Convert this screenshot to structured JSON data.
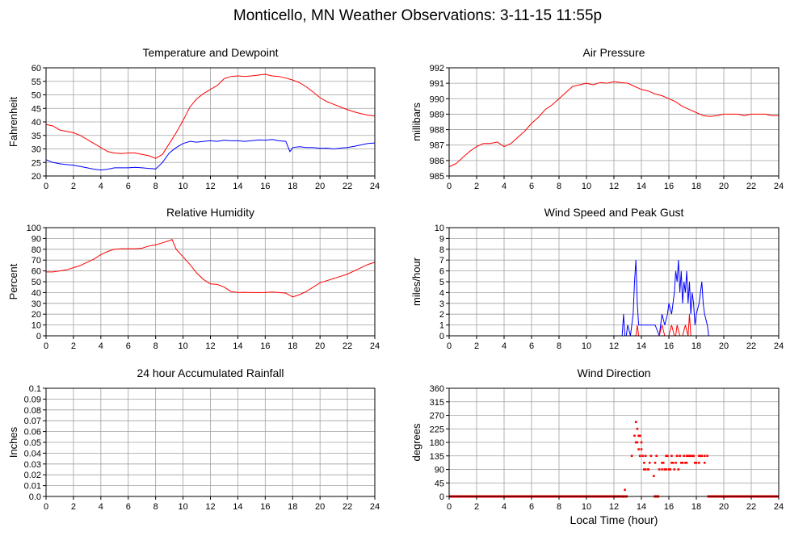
{
  "page": {
    "title": "Monticello, MN Weather Observations: 3-11-15 11:55p",
    "xlabel": "Local Time (hour)"
  },
  "colors": {
    "red": "#ff0000",
    "blue": "#0000ff",
    "grid": "#a0a0a0"
  },
  "chart_data": [
    {
      "id": "temp",
      "type": "line",
      "title": "Temperature and Dewpoint",
      "ylabel": "Fahrenheit",
      "xlim": [
        0,
        24
      ],
      "ylim": [
        20,
        60
      ],
      "xticks": [
        0,
        2,
        4,
        6,
        8,
        10,
        12,
        14,
        16,
        18,
        20,
        22,
        24
      ],
      "yticks": [
        20,
        25,
        30,
        35,
        40,
        45,
        50,
        55,
        60
      ],
      "grid": true,
      "series": [
        {
          "color": "#ff0000",
          "x": [
            0,
            0.5,
            1,
            1.5,
            2,
            2.5,
            3,
            3.5,
            4,
            4.5,
            5,
            5.5,
            6,
            6.5,
            7,
            7.5,
            8,
            8.5,
            9,
            9.5,
            10,
            10.5,
            11,
            11.5,
            12,
            12.5,
            13,
            13.5,
            14,
            14.5,
            15,
            15.5,
            16,
            16.5,
            17,
            17.5,
            18,
            18.5,
            19,
            19.5,
            20,
            20.5,
            21,
            21.5,
            22,
            22.5,
            23,
            23.5,
            24
          ],
          "y": [
            39,
            38.5,
            37,
            36.5,
            36,
            35,
            33.5,
            32,
            30.5,
            29,
            28.5,
            28.3,
            28.5,
            28.5,
            28,
            27.5,
            26.5,
            28,
            32,
            36,
            40.5,
            45.5,
            48.5,
            50.5,
            52,
            53.5,
            56,
            56.8,
            57,
            56.8,
            57,
            57.3,
            57.6,
            57,
            56.8,
            56.2,
            55.5,
            54.5,
            53,
            51,
            49,
            47.5,
            46.5,
            45.5,
            44.5,
            43.7,
            43,
            42.5,
            42.2
          ]
        },
        {
          "color": "#0000ff",
          "x": [
            0,
            0.5,
            1,
            1.5,
            2,
            2.5,
            3,
            3.5,
            4,
            4.5,
            5,
            5.5,
            6,
            6.5,
            7,
            7.5,
            8,
            8.5,
            9,
            9.5,
            10,
            10.5,
            11,
            11.5,
            12,
            12.5,
            13,
            13.5,
            14,
            14.5,
            15,
            15.5,
            16,
            16.5,
            17,
            17.5,
            17.8,
            18,
            18.5,
            19,
            19.5,
            20,
            20.5,
            21,
            21.5,
            22,
            22.5,
            23,
            23.5,
            24
          ],
          "y": [
            26,
            25,
            24.5,
            24.2,
            24,
            23.5,
            23,
            22.5,
            22.2,
            22.5,
            23,
            23,
            23,
            23.2,
            23,
            22.8,
            22.6,
            25,
            28.5,
            30.5,
            32,
            32.8,
            32.5,
            32.8,
            33,
            32.8,
            33.2,
            33,
            33,
            32.8,
            33,
            33.3,
            33.2,
            33.5,
            33,
            32.8,
            29,
            30.5,
            30.8,
            30.5,
            30.5,
            30.2,
            30.3,
            30,
            30.3,
            30.5,
            31,
            31.5,
            32,
            32.2
          ]
        }
      ]
    },
    {
      "id": "pressure",
      "type": "line",
      "title": "Air Pressure",
      "ylabel": "millibars",
      "xlim": [
        0,
        24
      ],
      "ylim": [
        985,
        992
      ],
      "xticks": [
        0,
        2,
        4,
        6,
        8,
        10,
        12,
        14,
        16,
        18,
        20,
        22,
        24
      ],
      "yticks": [
        985,
        986,
        987,
        988,
        989,
        990,
        991,
        992
      ],
      "grid": true,
      "series": [
        {
          "color": "#ff0000",
          "x": [
            0,
            0.5,
            1,
            1.5,
            2,
            2.5,
            3,
            3.5,
            4,
            4.5,
            5,
            5.5,
            6,
            6.5,
            7,
            7.5,
            8,
            8.5,
            9,
            9.5,
            10,
            10.5,
            11,
            11.5,
            12,
            12.5,
            13,
            13.5,
            14,
            14.5,
            15,
            15.5,
            16,
            16.5,
            17,
            17.5,
            18,
            18.5,
            19,
            19.5,
            20,
            20.5,
            21,
            21.5,
            22,
            22.5,
            23,
            23.5,
            24
          ],
          "y": [
            985.6,
            985.8,
            986.2,
            986.6,
            986.9,
            987.1,
            987.1,
            987.2,
            986.9,
            987.1,
            987.5,
            987.9,
            988.4,
            988.8,
            989.3,
            989.6,
            990,
            990.4,
            990.8,
            990.9,
            991,
            990.9,
            991.05,
            991,
            991.1,
            991.05,
            991,
            990.8,
            990.6,
            990.5,
            990.3,
            990.2,
            990,
            989.8,
            989.5,
            989.3,
            989.1,
            988.9,
            988.85,
            988.9,
            989,
            989,
            989,
            988.9,
            989,
            989,
            989,
            988.9,
            988.9
          ]
        }
      ]
    },
    {
      "id": "humidity",
      "type": "line",
      "title": "Relative Humidity",
      "ylabel": "Percent",
      "xlim": [
        0,
        24
      ],
      "ylim": [
        0,
        100
      ],
      "xticks": [
        0,
        2,
        4,
        6,
        8,
        10,
        12,
        14,
        16,
        18,
        20,
        22,
        24
      ],
      "yticks": [
        0,
        10,
        20,
        30,
        40,
        50,
        60,
        70,
        80,
        90,
        100
      ],
      "grid": true,
      "series": [
        {
          "color": "#ff0000",
          "x": [
            0,
            0.5,
            1,
            1.5,
            2,
            2.5,
            3,
            3.5,
            4,
            4.5,
            5,
            5.5,
            6,
            6.5,
            7,
            7.5,
            8,
            8.5,
            9,
            9.2,
            9.5,
            10,
            10.5,
            11,
            11.5,
            12,
            12.5,
            13,
            13.5,
            14,
            14.5,
            15,
            15.5,
            16,
            16.5,
            17,
            17.5,
            18,
            18.5,
            19,
            19.5,
            20,
            20.5,
            21,
            21.5,
            22,
            22.5,
            23,
            23.5,
            24
          ],
          "y": [
            59,
            59,
            60,
            61,
            63,
            65,
            68,
            71,
            75,
            78,
            80,
            80.5,
            80.5,
            80.5,
            81,
            83,
            84,
            86,
            88,
            89,
            80,
            73,
            66,
            58,
            52,
            48,
            47.5,
            45,
            41,
            40,
            40.2,
            40,
            40,
            40,
            40.5,
            40,
            39.5,
            36,
            38,
            41,
            45,
            49,
            51,
            53,
            55,
            57,
            60,
            63,
            66,
            68
          ]
        }
      ]
    },
    {
      "id": "wind",
      "type": "line",
      "title": "Wind Speed and Peak Gust",
      "ylabel": "miles/hour",
      "xlim": [
        0,
        24
      ],
      "ylim": [
        0,
        10
      ],
      "xticks": [
        0,
        2,
        4,
        6,
        8,
        10,
        12,
        14,
        16,
        18,
        20,
        22,
        24
      ],
      "yticks": [
        0,
        1,
        2,
        3,
        4,
        5,
        6,
        7,
        8,
        9,
        10
      ],
      "grid": true,
      "series": [
        {
          "color": "#0000ff",
          "x": [
            0,
            12.6,
            12.7,
            12.8,
            12.9,
            13,
            13.2,
            13.4,
            13.5,
            13.6,
            13.7,
            13.8,
            13.9,
            14.5,
            15,
            15.3,
            15.5,
            15.7,
            15.9,
            16,
            16.2,
            16.4,
            16.5,
            16.6,
            16.7,
            16.8,
            16.9,
            17,
            17.1,
            17.2,
            17.3,
            17.4,
            17.5,
            17.6,
            17.7,
            17.8,
            17.9,
            18,
            18.2,
            18.4,
            18.5,
            18.6,
            18.8,
            18.9,
            19,
            24
          ],
          "y": [
            0,
            0,
            2,
            0,
            0,
            1,
            0,
            2,
            5,
            7,
            3,
            1,
            1,
            1,
            1,
            0,
            2,
            1,
            2,
            3,
            2,
            4,
            6,
            5,
            7,
            4,
            6,
            3,
            5,
            4,
            6,
            3,
            5,
            2,
            4,
            3,
            1,
            2,
            3,
            5,
            3,
            2,
            1,
            0,
            0,
            0
          ]
        },
        {
          "color": "#ff0000",
          "x": [
            0,
            13.6,
            13.7,
            13.8,
            14,
            14.5,
            15,
            15.3,
            15.5,
            15.7,
            16,
            16.2,
            16.4,
            16.5,
            16.6,
            16.8,
            17,
            17.2,
            17.4,
            17.5,
            17.6,
            17.8,
            18,
            24
          ],
          "y": [
            0,
            0,
            1,
            0,
            0,
            0,
            0,
            0,
            1,
            0,
            0,
            1,
            0,
            0,
            1,
            0,
            0,
            1,
            0,
            2,
            0,
            0,
            0,
            0
          ]
        }
      ]
    },
    {
      "id": "rain",
      "type": "line",
      "title": "24 hour Accumulated Rainfall",
      "ylabel": "Inches",
      "xlim": [
        0,
        24
      ],
      "ylim": [
        0,
        0.1
      ],
      "xticks": [
        0,
        2,
        4,
        6,
        8,
        10,
        12,
        14,
        16,
        18,
        20,
        22,
        24
      ],
      "yticks": [
        0.0,
        0.01,
        0.02,
        0.03,
        0.04,
        0.05,
        0.06,
        0.07,
        0.08,
        0.09,
        0.1
      ],
      "ytick_labels": [
        "0.0",
        "0.01",
        "0.02",
        "0.03",
        "0.04",
        "0.05",
        "0.06",
        "0.07",
        "0.08",
        "0.09",
        "0.1"
      ],
      "grid": true,
      "series": [
        {
          "color": "#ff0000",
          "x": [
            0,
            24
          ],
          "y": [
            0,
            0
          ]
        }
      ]
    },
    {
      "id": "direction",
      "type": "scatter",
      "title": "Wind Direction",
      "ylabel": "degrees",
      "xlabel": "Local Time (hour)",
      "xlim": [
        0,
        24
      ],
      "ylim": [
        0,
        360
      ],
      "xticks": [
        0,
        2,
        4,
        6,
        8,
        10,
        12,
        14,
        16,
        18,
        20,
        22,
        24
      ],
      "yticks": [
        0,
        45,
        90,
        135,
        180,
        225,
        270,
        315,
        360
      ],
      "grid": true,
      "baseline_zero_ranges": [
        [
          0,
          13.0
        ],
        [
          14.9,
          15.3
        ],
        [
          18.8,
          24
        ]
      ],
      "series": [
        {
          "color": "#ff0000",
          "x": [
            12.8,
            13.3,
            13.5,
            13.6,
            13.7,
            13.8,
            13.9,
            14.0,
            14.1,
            14.2,
            14.3,
            14.5,
            14.7,
            14.9,
            15.3,
            15.5,
            15.6,
            15.8,
            15.9,
            16.0,
            16.2,
            16.4,
            16.5,
            16.6,
            16.8,
            17.0,
            17.1,
            17.3,
            17.5,
            17.6,
            17.8,
            18.0,
            18.2,
            18.4,
            18.6,
            18.8,
            13.7,
            13.8,
            13.9,
            14.0,
            14.2,
            14.5,
            15.0,
            15.5,
            15.8,
            16.1,
            16.3,
            16.6,
            16.9,
            17.2,
            17.4,
            17.7,
            17.9,
            18.2,
            18.6,
            13.6,
            13.9,
            14.3,
            14.6,
            15.1,
            15.7,
            16.2,
            16.7,
            17.3,
            17.8,
            18.3
          ],
          "y": [
            22,
            135,
            202,
            248,
            180,
            202,
            135,
            180,
            135,
            112,
            135,
            90,
            135,
            68,
            90,
            90,
            112,
            90,
            135,
            90,
            135,
            90,
            112,
            135,
            135,
            112,
            135,
            112,
            135,
            135,
            135,
            112,
            135,
            135,
            112,
            135,
            225,
            157,
            202,
            157,
            90,
            90,
            112,
            112,
            135,
            90,
            112,
            135,
            112,
            112,
            135,
            135,
            112,
            112,
            135,
            180,
            202,
            90,
            112,
            135,
            90,
            112,
            90,
            135,
            135,
            135
          ]
        }
      ]
    }
  ]
}
